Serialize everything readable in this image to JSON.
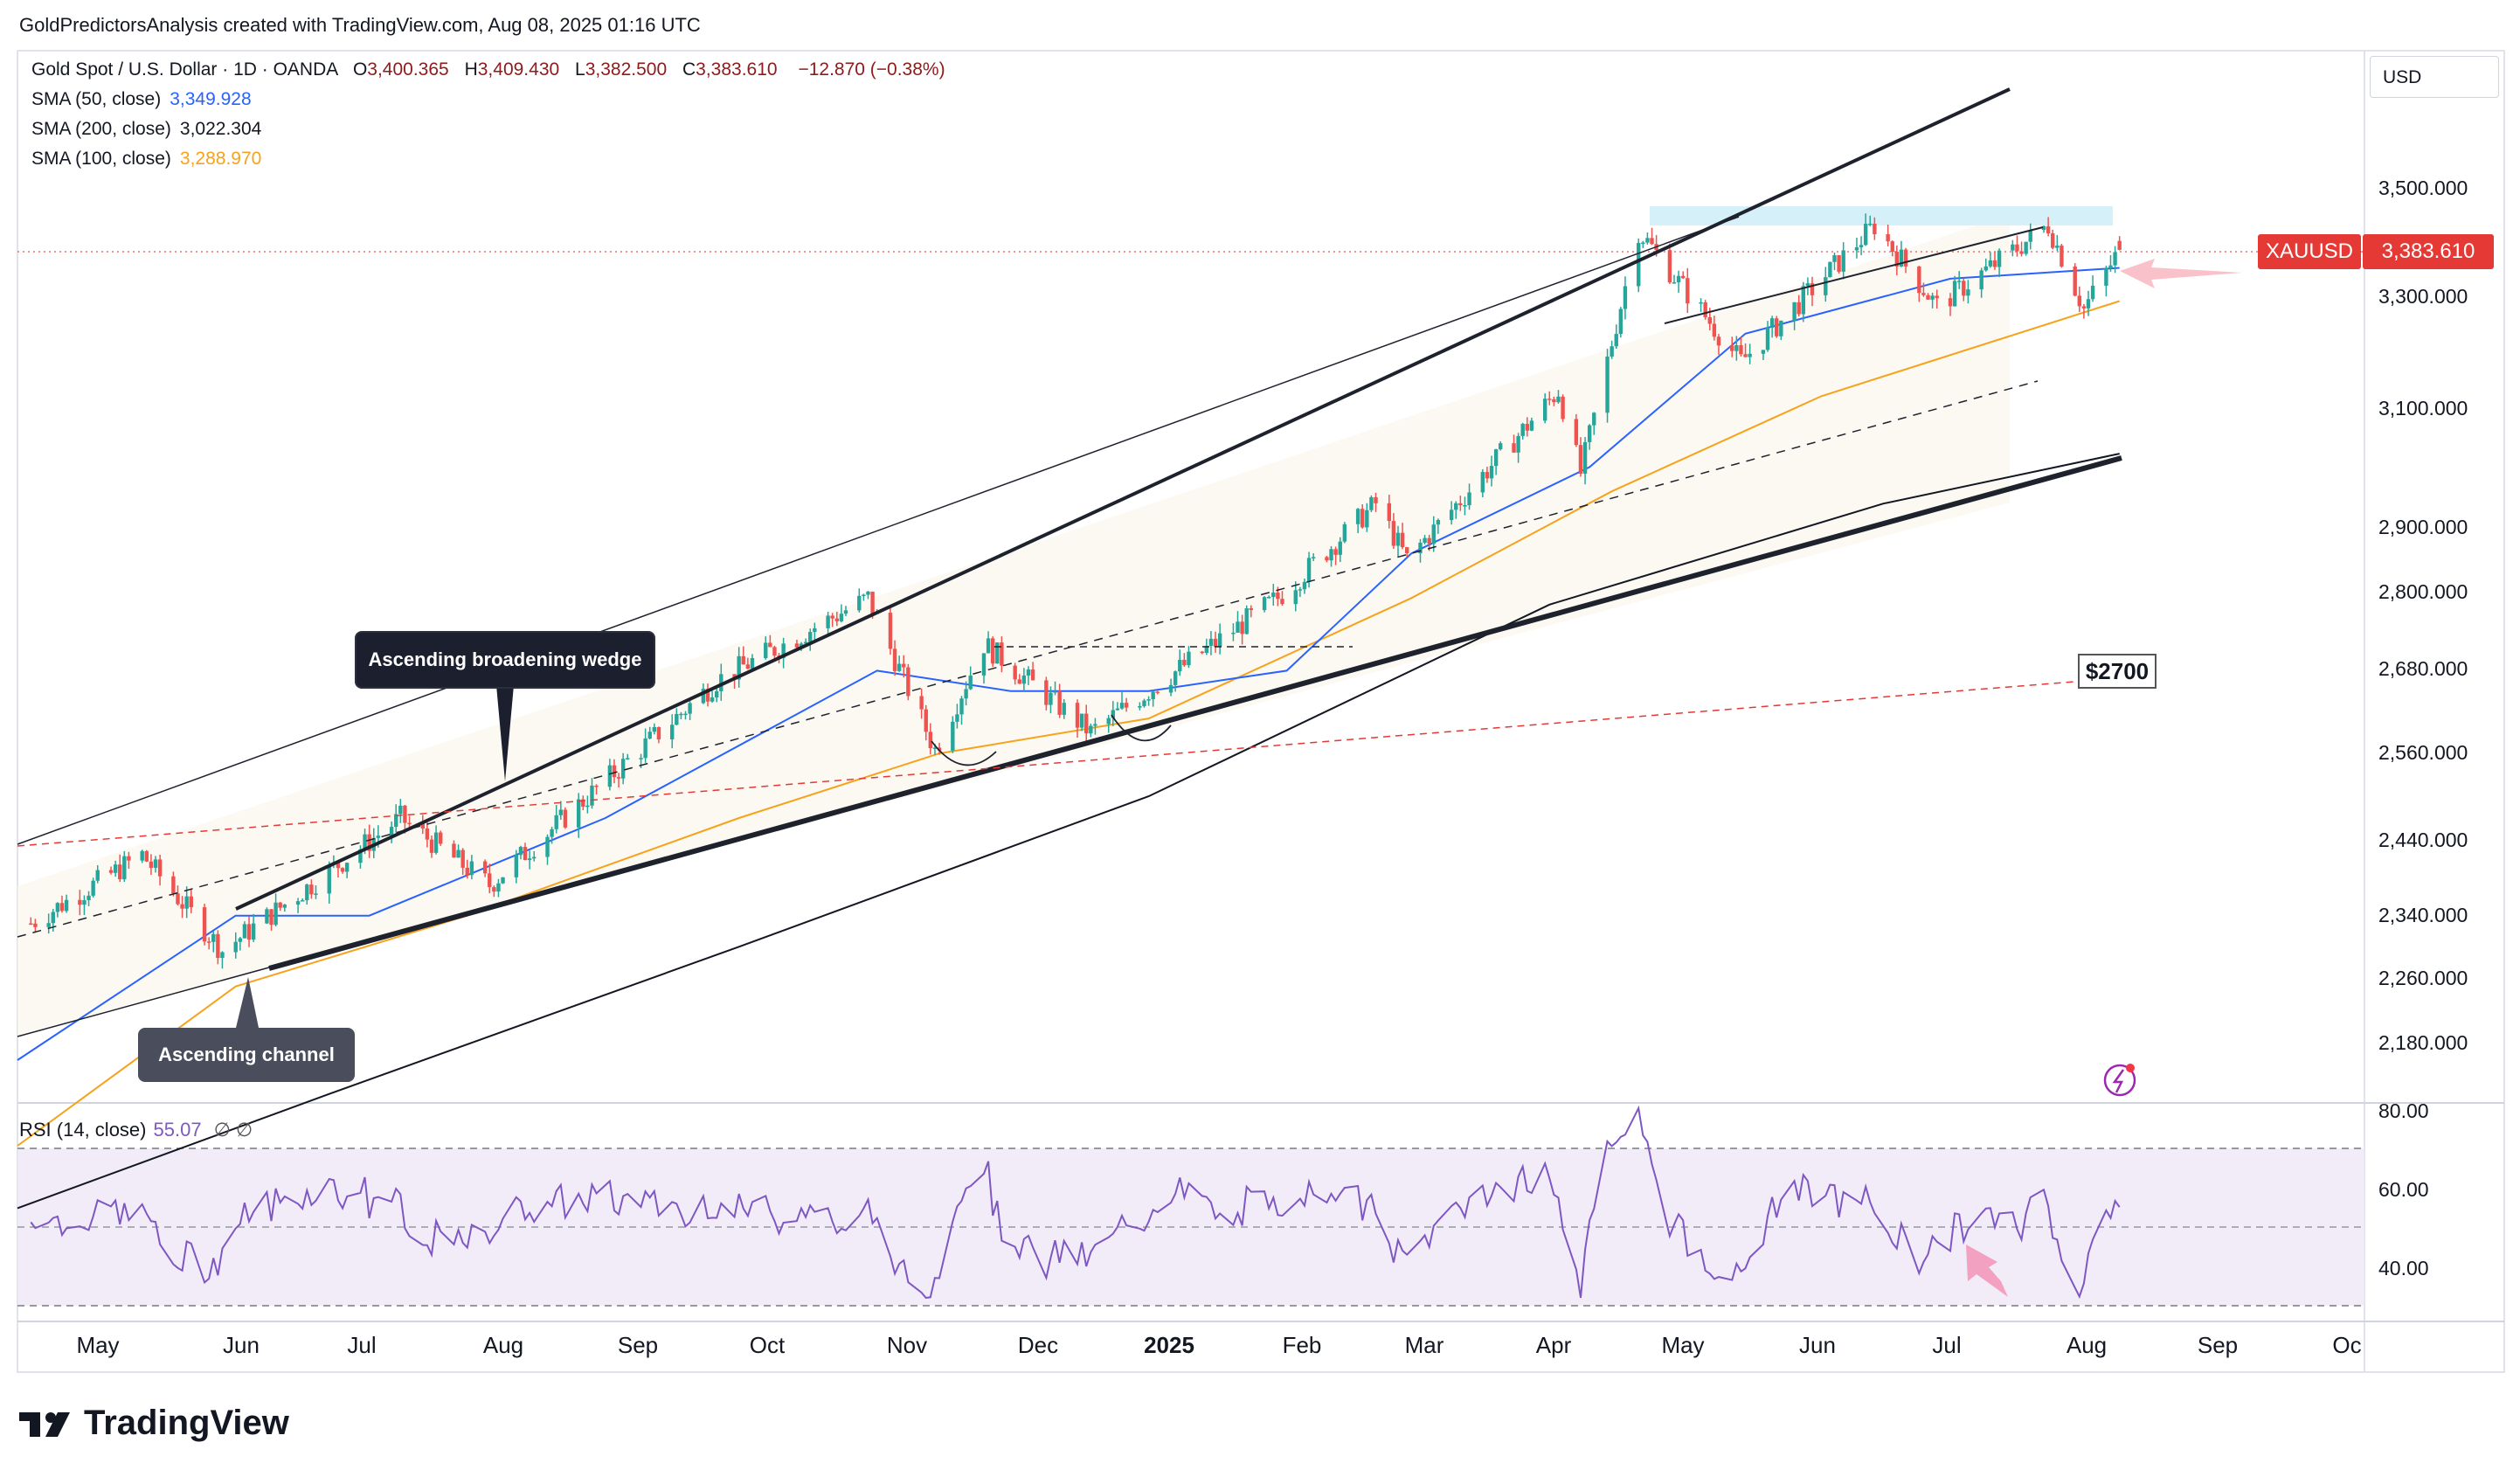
{
  "header": {
    "text": "GoldPredictorsAnalysis created with TradingView.com, Aug 08, 2025 01:16 UTC"
  },
  "legend": {
    "symbol": "Gold Spot / U.S. Dollar · 1D · OANDA",
    "ohlc": [
      {
        "k": "O",
        "v": "3,400.365"
      },
      {
        "k": "H",
        "v": "3,409.430"
      },
      {
        "k": "L",
        "v": "3,382.500"
      },
      {
        "k": "C",
        "v": "3,383.610"
      }
    ],
    "change": "−12.870 (−0.38%)",
    "sma50": {
      "label": "SMA (50, close)",
      "value": "3,349.928",
      "color": "#2962ff"
    },
    "sma200": {
      "label": "SMA (200, close)",
      "value": "3,022.304",
      "color": "#131722"
    },
    "sma100": {
      "label": "SMA (100, close)",
      "value": "3,288.970",
      "color": "#f7a21b"
    }
  },
  "currency": "USD",
  "price_axis": [
    "3,500.000",
    "3,300.000",
    "3,100.000",
    "2,900.000",
    "2,800.000",
    "2,680.000",
    "2,560.000",
    "2,440.000",
    "2,340.000",
    "2,260.000",
    "2,180.000"
  ],
  "rsi_axis": [
    "80.00",
    "60.00",
    "40.00"
  ],
  "time_axis": [
    {
      "label": "May",
      "bold": false
    },
    {
      "label": "Jun",
      "bold": false
    },
    {
      "label": "Jul",
      "bold": false
    },
    {
      "label": "Aug",
      "bold": false
    },
    {
      "label": "Sep",
      "bold": false
    },
    {
      "label": "Oct",
      "bold": false
    },
    {
      "label": "Nov",
      "bold": false
    },
    {
      "label": "Dec",
      "bold": false
    },
    {
      "label": "2025",
      "bold": true
    },
    {
      "label": "Feb",
      "bold": false
    },
    {
      "label": "Mar",
      "bold": false
    },
    {
      "label": "Apr",
      "bold": false
    },
    {
      "label": "May",
      "bold": false
    },
    {
      "label": "Jun",
      "bold": false
    },
    {
      "label": "Jul",
      "bold": false
    },
    {
      "label": "Aug",
      "bold": false
    },
    {
      "label": "Sep",
      "bold": false
    },
    {
      "label": "Oc",
      "bold": false
    }
  ],
  "last_price": {
    "ticker": "XAUUSD",
    "value": "3,383.610"
  },
  "annotations": {
    "wedge": "Ascending broadening wedge",
    "channel": "Ascending channel",
    "level": "$2700"
  },
  "rsi": {
    "label": "RSI (14, close)",
    "value": "55.07",
    "extra": "∅ ∅",
    "color": "#7e57c2"
  },
  "brand": "TradingView",
  "colors": {
    "up": "#26a69a",
    "down": "#ef5350",
    "sma50": "#2962ff",
    "sma100": "#f7a21b",
    "sma200": "#131722",
    "rsi": "#7e57c2"
  },
  "chart_data": {
    "type": "candlestick",
    "symbol": "XAUUSD",
    "timeframe": "1D",
    "x_range": [
      "2024-04-22",
      "2025-10-01"
    ],
    "y_range": [
      2150,
      3560
    ],
    "y_scale": "log",
    "grid": false,
    "anchors": [
      {
        "date": "2024-04-25",
        "close": 2330
      },
      {
        "date": "2024-05-20",
        "close": 2420
      },
      {
        "date": "2024-06-07",
        "close": 2295
      },
      {
        "date": "2024-07-17",
        "close": 2470
      },
      {
        "date": "2024-08-06",
        "close": 2380
      },
      {
        "date": "2024-09-26",
        "close": 2665
      },
      {
        "date": "2024-10-30",
        "close": 2790
      },
      {
        "date": "2024-11-14",
        "close": 2565
      },
      {
        "date": "2024-11-25",
        "close": 2720
      },
      {
        "date": "2024-12-19",
        "close": 2590
      },
      {
        "date": "2025-01-30",
        "close": 2790
      },
      {
        "date": "2025-02-21",
        "close": 2940
      },
      {
        "date": "2025-02-28",
        "close": 2850
      },
      {
        "date": "2025-04-03",
        "close": 3130
      },
      {
        "date": "2025-04-08",
        "close": 2990
      },
      {
        "date": "2025-04-21",
        "close": 3420
      },
      {
        "date": "2025-05-14",
        "close": 3180
      },
      {
        "date": "2025-06-13",
        "close": 3430
      },
      {
        "date": "2025-06-27",
        "close": 3280
      },
      {
        "date": "2025-07-22",
        "close": 3430
      },
      {
        "date": "2025-07-30",
        "close": 3275
      },
      {
        "date": "2025-08-07",
        "close": 3383.61
      }
    ],
    "last_bar": {
      "date": "2025-08-07",
      "open": 3400.365,
      "high": 3409.43,
      "low": 3382.5,
      "close": 3383.61
    },
    "sma": {
      "sma50": [
        [
          "2024-04-22",
          2160
        ],
        [
          "2024-06-10",
          2340
        ],
        [
          "2024-07-10",
          2340
        ],
        [
          "2024-09-01",
          2470
        ],
        [
          "2024-11-01",
          2680
        ],
        [
          "2024-12-01",
          2650
        ],
        [
          "2025-01-01",
          2650
        ],
        [
          "2025-02-01",
          2680
        ],
        [
          "2025-03-01",
          2860
        ],
        [
          "2025-04-10",
          3000
        ],
        [
          "2025-05-15",
          3230
        ],
        [
          "2025-06-30",
          3330
        ],
        [
          "2025-08-07",
          3349.928
        ]
      ],
      "sma100": [
        [
          "2024-04-22",
          2060
        ],
        [
          "2024-06-10",
          2250
        ],
        [
          "2024-08-01",
          2340
        ],
        [
          "2024-10-01",
          2470
        ],
        [
          "2024-11-15",
          2560
        ],
        [
          "2025-01-01",
          2610
        ],
        [
          "2025-03-01",
          2790
        ],
        [
          "2025-04-15",
          2960
        ],
        [
          "2025-06-01",
          3120
        ],
        [
          "2025-08-07",
          3288.97
        ]
      ],
      "sma200": [
        [
          "2024-04-22",
          1990
        ],
        [
          "2024-07-01",
          2120
        ],
        [
          "2024-10-01",
          2300
        ],
        [
          "2025-01-01",
          2500
        ],
        [
          "2025-04-01",
          2780
        ],
        [
          "2025-06-15",
          2940
        ],
        [
          "2025-08-07",
          3022.304
        ]
      ]
    },
    "rsi_range": [
      30,
      83
    ],
    "rsi_bands": [
      70,
      50,
      30
    ],
    "rsi_last": 55.07,
    "annotations": [
      "Ascending broadening wedge",
      "Ascending channel",
      "$2700"
    ]
  }
}
